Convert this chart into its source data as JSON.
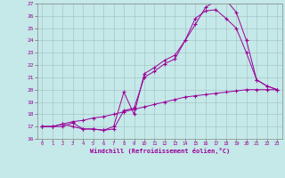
{
  "xlabel": "Windchill (Refroidissement éolien,°C)",
  "background_color": "#c5e8e8",
  "grid_color": "#a0c0c0",
  "line_color": "#990099",
  "xlim": [
    -0.5,
    23.5
  ],
  "ylim": [
    16,
    27
  ],
  "xticks": [
    0,
    1,
    2,
    3,
    4,
    5,
    6,
    7,
    8,
    9,
    10,
    11,
    12,
    13,
    14,
    15,
    16,
    17,
    18,
    19,
    20,
    21,
    22,
    23
  ],
  "yticks": [
    16,
    17,
    18,
    19,
    20,
    21,
    22,
    23,
    24,
    25,
    26,
    27
  ],
  "curve1_x": [
    0,
    1,
    2,
    3,
    4,
    5,
    6,
    7,
    8,
    9,
    10,
    11,
    12,
    13,
    14,
    15,
    16,
    17,
    18,
    19,
    20,
    21,
    22,
    23
  ],
  "curve1_y": [
    17.0,
    17.0,
    17.2,
    17.0,
    16.8,
    16.8,
    16.7,
    17.0,
    19.8,
    18.0,
    21.3,
    21.8,
    22.4,
    22.8,
    24.0,
    25.3,
    26.7,
    27.2,
    27.3,
    26.3,
    24.0,
    20.8,
    20.3,
    20.0
  ],
  "curve2_x": [
    0,
    1,
    2,
    3,
    4,
    5,
    6,
    7,
    8,
    9,
    10,
    11,
    12,
    13,
    14,
    15,
    16,
    17,
    18,
    19,
    20,
    21,
    22,
    23
  ],
  "curve2_y": [
    17.0,
    17.0,
    17.0,
    17.3,
    16.8,
    16.8,
    16.7,
    16.8,
    18.3,
    18.5,
    21.0,
    21.5,
    22.1,
    22.5,
    24.0,
    25.8,
    26.4,
    26.5,
    25.8,
    25.0,
    23.0,
    20.8,
    20.3,
    20.0
  ],
  "curve3_x": [
    0,
    1,
    2,
    3,
    4,
    5,
    6,
    7,
    8,
    9,
    10,
    11,
    12,
    13,
    14,
    15,
    16,
    17,
    18,
    19,
    20,
    21,
    22,
    23
  ],
  "curve3_y": [
    17.0,
    17.0,
    17.2,
    17.4,
    17.5,
    17.7,
    17.8,
    18.0,
    18.2,
    18.4,
    18.6,
    18.8,
    19.0,
    19.2,
    19.4,
    19.5,
    19.6,
    19.7,
    19.8,
    19.9,
    20.0,
    20.0,
    20.0,
    20.0
  ]
}
